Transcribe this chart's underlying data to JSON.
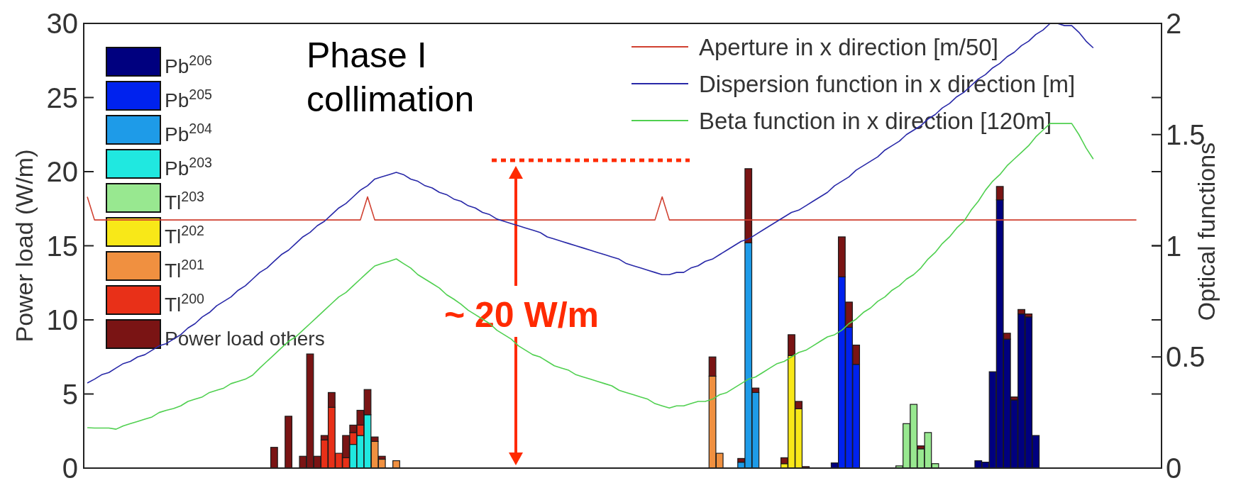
{
  "chart_data": {
    "type": "bar",
    "stacked": true,
    "ylabel": "Power load (W/m)",
    "y2label": "Optical functions",
    "categories": [
      null,
      null,
      null,
      null,
      null,
      null,
      null,
      null,
      null,
      null,
      null,
      null,
      null,
      null,
      null,
      null,
      null,
      null,
      null,
      null,
      null,
      null,
      null,
      null,
      null,
      null,
      null,
      null,
      null,
      null,
      null,
      null,
      null,
      null,
      null,
      null,
      null,
      null,
      null,
      null,
      null,
      null,
      null,
      null,
      null,
      null,
      null,
      null,
      null,
      null,
      null,
      null,
      null,
      null,
      null,
      null,
      null,
      null,
      null,
      null,
      null,
      null,
      null,
      null,
      null,
      null,
      null,
      null,
      null,
      null,
      null,
      null,
      null,
      null,
      null,
      null,
      null,
      null,
      null,
      null,
      null,
      null,
      null,
      null,
      null,
      null,
      null,
      null,
      null,
      null,
      null,
      null,
      null,
      null,
      null,
      null,
      null,
      null,
      null,
      null,
      null,
      null,
      null,
      null,
      null,
      null,
      null,
      null,
      null,
      null,
      null,
      null,
      null,
      null,
      null,
      null,
      null,
      null,
      null,
      null,
      null,
      null,
      null,
      null,
      null,
      null,
      null,
      null,
      null,
      null,
      null,
      null,
      null,
      null,
      null,
      null,
      null,
      null,
      null,
      null,
      null,
      null,
      null,
      null,
      null,
      null,
      null,
      null,
      null,
      null
    ],
    "ylim": [
      0,
      30
    ],
    "yticks": [
      0,
      5,
      10,
      15,
      20,
      25,
      30
    ],
    "y2lim": [
      0,
      2
    ],
    "y2ticks": [
      0,
      0.5,
      1,
      1.5,
      2
    ],
    "tick_labels": "y",
    "legend": "top",
    "annotations": [
      "Phase I collimation",
      "~ 20 W/m"
    ],
    "series": [
      {
        "name": "Pb$^{206}$",
        "color": "#00007f",
        "values": [
          null,
          null,
          null,
          null,
          null,
          null,
          null,
          null,
          null,
          null,
          null,
          null,
          null,
          null,
          null,
          null,
          null,
          null,
          null,
          null,
          null,
          null,
          null,
          null,
          null,
          null,
          null,
          null,
          null,
          null,
          null,
          null,
          null,
          null,
          null,
          null,
          null,
          null,
          null,
          null,
          null,
          null,
          null,
          null,
          null,
          null,
          null,
          null,
          null,
          null,
          null,
          null,
          null,
          null,
          null,
          null,
          null,
          null,
          null,
          null,
          null,
          null,
          null,
          null,
          null,
          null,
          null,
          null,
          null,
          null,
          null,
          null,
          null,
          null,
          null,
          null,
          null,
          null,
          null,
          null,
          null,
          null,
          null,
          null,
          null,
          null,
          null,
          null,
          null,
          null,
          null,
          null,
          null,
          null,
          null,
          null,
          null,
          null,
          null,
          null,
          null,
          null,
          null,
          null,
          0.35,
          null,
          null,
          null,
          null,
          null,
          null,
          null,
          null,
          null,
          null,
          null,
          null,
          null,
          null,
          null,
          null,
          null,
          null,
          null,
          0.5,
          0.4,
          6.5,
          18.1,
          8.7,
          4.6,
          10.4,
          10.2,
          2.2,
          null,
          null,
          null,
          null,
          null,
          null,
          null,
          null,
          null,
          null,
          null,
          null,
          null,
          null,
          null,
          null,
          null
        ]
      },
      {
        "name": "Pb$^{205}$",
        "color": "#0022ee",
        "values": [
          null,
          null,
          null,
          null,
          null,
          null,
          null,
          null,
          null,
          null,
          null,
          null,
          null,
          null,
          null,
          null,
          null,
          null,
          null,
          null,
          null,
          null,
          null,
          null,
          null,
          null,
          null,
          null,
          null,
          null,
          null,
          null,
          null,
          null,
          null,
          null,
          null,
          null,
          null,
          null,
          null,
          null,
          null,
          null,
          null,
          null,
          null,
          null,
          null,
          null,
          null,
          null,
          null,
          null,
          null,
          null,
          null,
          null,
          null,
          null,
          null,
          null,
          null,
          null,
          null,
          null,
          null,
          null,
          null,
          null,
          null,
          null,
          null,
          null,
          null,
          null,
          null,
          null,
          null,
          null,
          null,
          null,
          null,
          null,
          null,
          null,
          null,
          null,
          null,
          null,
          null,
          null,
          null,
          null,
          null,
          null,
          null,
          null,
          null,
          null,
          null,
          null,
          null,
          null,
          null,
          12.9,
          9.5,
          7.0,
          null,
          null,
          null,
          null,
          null,
          null,
          null,
          null,
          null,
          null,
          null,
          null,
          null,
          null,
          null,
          null,
          null,
          null,
          null,
          null,
          null,
          null,
          null,
          null,
          null,
          null,
          null,
          null,
          null,
          null,
          null,
          null,
          null,
          null,
          null,
          null,
          null,
          null,
          null,
          null,
          null,
          null
        ]
      },
      {
        "name": "Pb$^{204}$",
        "color": "#1e9be8",
        "values": [
          null,
          null,
          null,
          null,
          null,
          null,
          null,
          null,
          null,
          null,
          null,
          null,
          null,
          null,
          null,
          null,
          null,
          null,
          null,
          null,
          null,
          null,
          null,
          null,
          null,
          null,
          null,
          null,
          null,
          null,
          null,
          null,
          null,
          null,
          null,
          null,
          null,
          null,
          null,
          null,
          null,
          null,
          null,
          null,
          null,
          null,
          null,
          null,
          null,
          null,
          null,
          null,
          null,
          null,
          null,
          null,
          null,
          null,
          null,
          null,
          null,
          null,
          null,
          null,
          null,
          null,
          null,
          null,
          null,
          null,
          null,
          null,
          null,
          null,
          null,
          null,
          null,
          null,
          null,
          null,
          null,
          null,
          null,
          null,
          null,
          null,
          null,
          null,
          null,
          null,
          null,
          0.4,
          15.2,
          5.1,
          null,
          null,
          null,
          null,
          null,
          null,
          null,
          null,
          null,
          null,
          null,
          null,
          null,
          null,
          null,
          null,
          null,
          null,
          null,
          null,
          null,
          null,
          null,
          null,
          null,
          null,
          null,
          null,
          null,
          null,
          null,
          null,
          null,
          null,
          null,
          null,
          null,
          null,
          null,
          null,
          null,
          null,
          null,
          null,
          null,
          null,
          null,
          null,
          null,
          null,
          null,
          null,
          null,
          null,
          null,
          null
        ]
      },
      {
        "name": "Pb$^{203}$",
        "color": "#20e8e0",
        "values": [
          null,
          null,
          null,
          null,
          null,
          null,
          null,
          null,
          null,
          null,
          null,
          null,
          null,
          null,
          null,
          null,
          null,
          null,
          null,
          null,
          null,
          null,
          null,
          null,
          null,
          null,
          null,
          null,
          null,
          null,
          null,
          null,
          null,
          null,
          null,
          null,
          null,
          1.6,
          2.2,
          3.6,
          null,
          null,
          null,
          null,
          null,
          null,
          null,
          null,
          null,
          null,
          null,
          null,
          null,
          null,
          null,
          null,
          null,
          null,
          null,
          null,
          null,
          null,
          null,
          null,
          null,
          null,
          null,
          null,
          null,
          null,
          null,
          null,
          null,
          null,
          null,
          null,
          null,
          null,
          null,
          null,
          null,
          null,
          null,
          null,
          null,
          null,
          null,
          null,
          null,
          null,
          null,
          null,
          null,
          null,
          null,
          null,
          null,
          null,
          null,
          null,
          null,
          null,
          null,
          null,
          null,
          null,
          null,
          null,
          null,
          null,
          null,
          null,
          null,
          null,
          null,
          null,
          null,
          null,
          null,
          null,
          null,
          null,
          null,
          null,
          null,
          null,
          null,
          null,
          null,
          null,
          null,
          null,
          null,
          null,
          null,
          null,
          null,
          null,
          null,
          null,
          null,
          null,
          null,
          null,
          null,
          null,
          null,
          null,
          null,
          null
        ]
      },
      {
        "name": "Tl$^{203}$",
        "color": "#98e890",
        "values": [
          null,
          null,
          null,
          null,
          null,
          null,
          null,
          null,
          null,
          null,
          null,
          null,
          null,
          null,
          null,
          null,
          null,
          null,
          null,
          null,
          null,
          null,
          null,
          null,
          null,
          null,
          null,
          null,
          null,
          null,
          null,
          null,
          null,
          null,
          null,
          null,
          null,
          null,
          null,
          null,
          null,
          null,
          null,
          null,
          null,
          null,
          null,
          null,
          null,
          null,
          null,
          null,
          null,
          null,
          null,
          null,
          null,
          null,
          null,
          null,
          null,
          null,
          null,
          null,
          null,
          null,
          null,
          null,
          null,
          null,
          null,
          null,
          null,
          null,
          null,
          null,
          null,
          null,
          null,
          null,
          null,
          null,
          null,
          null,
          null,
          null,
          null,
          null,
          null,
          null,
          null,
          null,
          null,
          null,
          null,
          null,
          null,
          null,
          null,
          null,
          null,
          null,
          null,
          null,
          null,
          null,
          null,
          null,
          null,
          null,
          null,
          null,
          null,
          0.15,
          3.0,
          4.3,
          1.3,
          2.4,
          0.3,
          null,
          null,
          null,
          null,
          null,
          null,
          null,
          null,
          null,
          null,
          null,
          null,
          null,
          null,
          null,
          null,
          null,
          null,
          null,
          null,
          null,
          null,
          null,
          null,
          null,
          null,
          null,
          null,
          null,
          null,
          null
        ]
      },
      {
        "name": "Tl$^{202}$",
        "color": "#f8e818",
        "values": [
          null,
          null,
          null,
          null,
          null,
          null,
          null,
          null,
          null,
          null,
          null,
          null,
          null,
          null,
          null,
          null,
          null,
          null,
          null,
          null,
          null,
          null,
          null,
          null,
          null,
          null,
          null,
          null,
          null,
          null,
          null,
          null,
          null,
          null,
          null,
          null,
          null,
          null,
          null,
          null,
          null,
          null,
          null,
          null,
          null,
          null,
          null,
          null,
          null,
          null,
          null,
          null,
          null,
          null,
          null,
          null,
          null,
          null,
          null,
          null,
          null,
          null,
          null,
          null,
          null,
          null,
          null,
          null,
          null,
          null,
          null,
          null,
          null,
          null,
          null,
          null,
          null,
          null,
          null,
          null,
          null,
          null,
          null,
          null,
          null,
          null,
          null,
          null,
          null,
          null,
          null,
          null,
          null,
          null,
          null,
          null,
          null,
          0.3,
          7.6,
          4.0,
          null,
          null,
          null,
          null,
          null,
          null,
          null,
          null,
          null,
          null,
          null,
          null,
          null,
          null,
          null,
          null,
          null,
          null,
          null,
          null,
          null,
          null,
          null,
          null,
          null,
          null,
          null,
          null,
          null,
          null,
          null,
          null,
          null,
          null,
          null,
          null,
          null,
          null,
          null,
          null,
          null,
          null,
          null,
          null,
          null,
          null,
          null,
          null,
          null,
          null
        ]
      },
      {
        "name": "Tl$^{201}$",
        "color": "#f09040",
        "values": [
          null,
          null,
          null,
          null,
          null,
          null,
          null,
          null,
          null,
          null,
          null,
          null,
          null,
          null,
          null,
          null,
          null,
          null,
          null,
          null,
          null,
          null,
          null,
          null,
          null,
          null,
          null,
          null,
          null,
          null,
          null,
          null,
          null,
          null,
          null,
          null,
          null,
          null,
          null,
          null,
          1.8,
          0.6,
          null,
          0.5,
          null,
          null,
          null,
          null,
          null,
          null,
          null,
          null,
          null,
          null,
          null,
          null,
          null,
          null,
          null,
          null,
          null,
          null,
          null,
          null,
          null,
          null,
          null,
          null,
          null,
          null,
          null,
          null,
          null,
          null,
          null,
          null,
          null,
          null,
          null,
          null,
          null,
          null,
          null,
          null,
          null,
          null,
          null,
          6.2,
          1.0,
          null,
          null,
          null,
          null,
          null,
          null,
          null,
          null,
          null,
          null,
          null,
          null,
          null,
          null,
          null,
          null,
          null,
          null,
          null,
          null,
          null,
          null,
          null,
          null,
          null,
          null,
          null,
          null,
          null,
          null,
          null,
          null,
          null,
          null,
          null,
          null,
          null,
          null,
          null,
          null,
          null,
          null,
          null,
          null,
          null,
          null,
          null,
          null,
          null,
          null,
          null,
          null,
          null,
          null,
          null,
          null,
          null,
          null,
          null,
          null,
          null
        ]
      },
      {
        "name": "Tl$^{200}$",
        "color": "#e83018",
        "values": [
          null,
          null,
          null,
          null,
          null,
          null,
          null,
          null,
          null,
          null,
          null,
          null,
          null,
          null,
          null,
          null,
          null,
          null,
          null,
          null,
          null,
          null,
          null,
          null,
          null,
          null,
          null,
          null,
          null,
          null,
          null,
          null,
          null,
          1.9,
          4.1,
          1.0,
          0.7,
          0.8,
          0.7,
          null,
          null,
          null,
          null,
          null,
          null,
          null,
          null,
          null,
          null,
          null,
          null,
          null,
          null,
          null,
          null,
          null,
          null,
          null,
          null,
          null,
          null,
          null,
          null,
          null,
          null,
          null,
          null,
          null,
          null,
          null,
          null,
          null,
          null,
          null,
          null,
          null,
          null,
          null,
          null,
          null,
          null,
          null,
          null,
          null,
          null,
          null,
          null,
          null,
          null,
          null,
          null,
          null,
          null,
          null,
          null,
          null,
          null,
          null,
          null,
          null,
          null,
          null,
          null,
          null,
          null,
          null,
          null,
          null,
          null,
          null,
          null,
          null,
          null,
          null,
          null,
          null,
          null,
          null,
          null,
          null,
          null,
          null,
          null,
          null,
          null,
          null,
          null,
          null,
          null,
          null,
          null,
          null,
          null,
          null,
          null,
          null,
          null,
          null,
          null,
          null,
          null,
          null,
          null,
          null,
          null,
          null,
          null,
          null,
          null,
          null
        ]
      },
      {
        "name": "Power load others",
        "color": "#7a1414",
        "values": [
          null,
          null,
          null,
          null,
          null,
          null,
          null,
          null,
          null,
          null,
          null,
          null,
          null,
          null,
          null,
          null,
          null,
          null,
          null,
          null,
          null,
          null,
          null,
          null,
          null,
          null,
          1.4,
          null,
          3.5,
          null,
          0.8,
          7.7,
          0.8,
          0.3,
          1.0,
          null,
          1.5,
          0.5,
          1.0,
          1.7,
          0.3,
          0.2,
          null,
          null,
          null,
          null,
          null,
          null,
          null,
          null,
          null,
          null,
          null,
          null,
          null,
          null,
          null,
          null,
          null,
          null,
          null,
          null,
          null,
          null,
          null,
          null,
          null,
          null,
          null,
          null,
          null,
          null,
          null,
          null,
          null,
          null,
          null,
          null,
          null,
          null,
          null,
          null,
          null,
          null,
          null,
          null,
          null,
          1.3,
          null,
          null,
          null,
          0.25,
          5.0,
          0.3,
          null,
          null,
          null,
          0.4,
          1.4,
          0.5,
          0.1,
          null,
          null,
          null,
          null,
          2.7,
          1.7,
          1.3,
          null,
          null,
          null,
          null,
          null,
          null,
          null,
          null,
          0.2,
          null,
          null,
          null,
          null,
          null,
          null,
          null,
          null,
          null,
          null,
          0.9,
          0.4,
          0.2,
          0.3,
          0.2,
          null,
          null,
          null,
          null,
          null,
          null,
          null,
          null,
          null,
          null,
          null,
          null,
          null,
          null,
          null,
          null,
          null,
          null
        ]
      },
      {
        "name": "Aperture in x direction [m/50]",
        "type": "line",
        "axis": "y2",
        "color": "#d04030",
        "values": [
          1.22,
          1.116,
          1.116,
          1.116,
          1.116,
          1.116,
          1.116,
          1.116,
          1.116,
          1.116,
          1.116,
          1.116,
          1.116,
          1.116,
          1.116,
          1.116,
          1.116,
          1.116,
          1.116,
          1.116,
          1.116,
          1.116,
          1.116,
          1.116,
          1.116,
          1.116,
          1.116,
          1.116,
          1.116,
          1.116,
          1.116,
          1.116,
          1.116,
          1.116,
          1.116,
          1.116,
          1.116,
          1.116,
          1.116,
          1.22,
          1.116,
          1.116,
          1.116,
          1.116,
          1.116,
          1.116,
          1.116,
          1.116,
          1.116,
          1.116,
          1.116,
          1.116,
          1.116,
          1.116,
          1.116,
          1.116,
          1.116,
          1.116,
          1.116,
          1.116,
          1.116,
          1.116,
          1.116,
          1.116,
          1.116,
          1.116,
          1.116,
          1.116,
          1.116,
          1.116,
          1.116,
          1.116,
          1.116,
          1.116,
          1.116,
          1.116,
          1.116,
          1.116,
          1.116,
          1.116,
          1.22,
          1.116,
          1.116,
          1.116,
          1.116,
          1.116,
          1.116,
          1.116,
          1.116,
          1.116,
          1.116,
          1.116,
          1.116,
          1.116,
          1.116,
          1.116,
          1.116,
          1.116,
          1.116,
          1.116,
          1.116,
          1.116,
          1.116,
          1.116,
          1.116,
          1.116,
          1.116,
          1.116,
          1.116,
          1.116,
          1.116,
          1.116,
          1.116,
          1.116,
          1.116,
          1.116,
          1.116,
          1.116,
          1.116,
          1.116,
          1.116,
          1.116,
          1.116,
          1.116,
          1.116,
          1.116,
          1.116,
          1.116,
          1.116,
          1.116,
          1.116,
          1.116,
          1.116,
          1.116,
          1.116,
          1.116,
          1.116,
          1.116,
          1.116,
          1.116,
          1.116,
          1.116,
          1.116,
          1.116,
          1.116,
          1.116,
          1.116,
          null,
          null,
          null
        ]
      },
      {
        "name": "Dispersion function in x direction [m]",
        "type": "line",
        "axis": "y2",
        "color": "#2828a8",
        "values": [
          0.383,
          0.4,
          0.42,
          0.43,
          0.45,
          0.47,
          0.48,
          0.5,
          0.51,
          0.53,
          0.55,
          0.56,
          0.58,
          0.6,
          0.63,
          0.65,
          0.68,
          0.7,
          0.73,
          0.75,
          0.77,
          0.8,
          0.82,
          0.85,
          0.88,
          0.9,
          0.93,
          0.96,
          0.98,
          1.01,
          1.04,
          1.06,
          1.09,
          1.11,
          1.14,
          1.17,
          1.19,
          1.22,
          1.25,
          1.27,
          1.3,
          1.31,
          1.32,
          1.33,
          1.32,
          1.3,
          1.29,
          1.27,
          1.26,
          1.24,
          1.23,
          1.21,
          1.2,
          1.18,
          1.17,
          1.15,
          1.14,
          1.12,
          1.11,
          1.1,
          1.09,
          1.08,
          1.07,
          1.06,
          1.04,
          1.03,
          1.02,
          1.01,
          1.0,
          0.99,
          0.98,
          0.97,
          0.96,
          0.95,
          0.94,
          0.92,
          0.91,
          0.9,
          0.89,
          0.88,
          0.87,
          0.87,
          0.88,
          0.88,
          0.9,
          0.91,
          0.93,
          0.94,
          0.96,
          0.98,
          1.0,
          1.02,
          1.03,
          1.05,
          1.07,
          1.09,
          1.11,
          1.13,
          1.15,
          1.16,
          1.18,
          1.2,
          1.22,
          1.24,
          1.27,
          1.29,
          1.31,
          1.34,
          1.36,
          1.38,
          1.4,
          1.43,
          1.45,
          1.47,
          1.5,
          1.52,
          1.54,
          1.57,
          1.59,
          1.62,
          1.64,
          1.67,
          1.69,
          1.72,
          1.75,
          1.77,
          1.8,
          1.82,
          1.85,
          1.87,
          1.9,
          1.92,
          1.95,
          1.97,
          2.0,
          2.0,
          1.99,
          1.99,
          1.96,
          1.92,
          1.89,
          null,
          null,
          null,
          null,
          null,
          null,
          null,
          null,
          null
        ]
      },
      {
        "name": "Beta function in x direction [120m]",
        "type": "line",
        "axis": "y2",
        "color": "#50d050",
        "values": [
          0.182,
          0.18,
          0.18,
          0.18,
          0.175,
          0.19,
          0.2,
          0.21,
          0.22,
          0.23,
          0.25,
          0.26,
          0.268,
          0.28,
          0.3,
          0.31,
          0.32,
          0.34,
          0.35,
          0.36,
          0.38,
          0.39,
          0.4,
          0.418,
          0.45,
          0.48,
          0.51,
          0.54,
          0.57,
          0.59,
          0.62,
          0.65,
          0.68,
          0.71,
          0.74,
          0.77,
          0.79,
          0.82,
          0.85,
          0.88,
          0.909,
          0.92,
          0.93,
          0.941,
          0.92,
          0.9,
          0.87,
          0.85,
          0.83,
          0.81,
          0.78,
          0.76,
          0.737,
          0.71,
          0.69,
          0.67,
          0.65,
          0.62,
          0.6,
          0.58,
          0.55,
          0.53,
          0.51,
          0.5,
          0.48,
          0.46,
          0.45,
          0.44,
          0.42,
          0.41,
          0.4,
          0.39,
          0.38,
          0.37,
          0.35,
          0.34,
          0.33,
          0.32,
          0.31,
          0.29,
          0.28,
          0.27,
          0.28,
          0.28,
          0.29,
          0.3,
          0.3,
          0.31,
          0.33,
          0.34,
          0.36,
          0.38,
          0.4,
          0.41,
          0.43,
          0.45,
          0.47,
          0.48,
          0.5,
          0.52,
          0.53,
          0.55,
          0.57,
          0.59,
          0.6,
          0.62,
          0.65,
          0.67,
          0.7,
          0.72,
          0.75,
          0.77,
          0.8,
          0.82,
          0.85,
          0.87,
          0.9,
          0.94,
          0.97,
          1.01,
          1.04,
          1.08,
          1.11,
          1.16,
          1.2,
          1.25,
          1.29,
          1.32,
          1.36,
          1.39,
          1.42,
          1.45,
          1.49,
          1.52,
          1.55,
          1.55,
          1.55,
          1.55,
          1.5,
          1.44,
          1.39,
          null,
          null,
          null,
          null,
          null,
          null,
          null,
          null,
          null
        ]
      }
    ]
  }
}
